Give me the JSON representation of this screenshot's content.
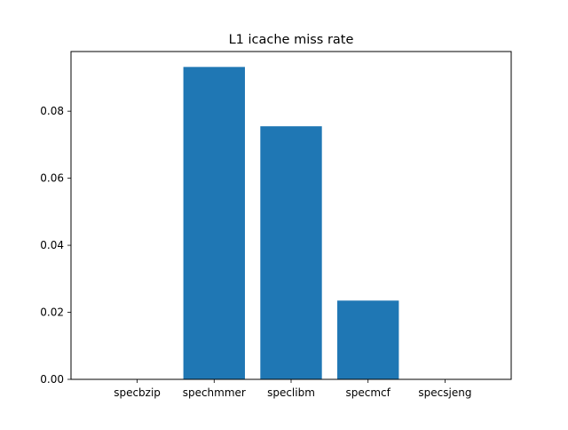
{
  "chart_data": {
    "type": "bar",
    "title": "L1 icache miss rate",
    "xlabel": "",
    "ylabel": "",
    "categories": [
      "specbzip",
      "spechmmer",
      "speclibm",
      "specmcf",
      "specsjeng"
    ],
    "values": [
      0.0,
      0.0932,
      0.0755,
      0.0235,
      0.0
    ],
    "ylim": [
      0,
      0.0978
    ],
    "yticks": [
      0.0,
      0.02,
      0.04,
      0.06,
      0.08
    ],
    "ytick_labels": [
      "0.00",
      "0.02",
      "0.04",
      "0.06",
      "0.08"
    ],
    "bar_color": "#1f77b4",
    "grid": false,
    "legend": "none"
  }
}
